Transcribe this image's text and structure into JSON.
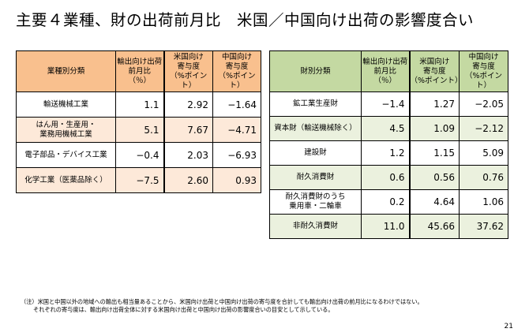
{
  "title": "主要４業種、財の出荷前月比　米国／中国向け出荷の影響度合い",
  "left_table": {
    "headers": [
      "業種別分類",
      "輸出向け出荷\n前月比\n（％）",
      "米国向け\n寄与度\n（%ポイント）",
      "中国向け\n寄与度\n（%ポイント）"
    ],
    "rows": [
      {
        "label": "輸送機械工業",
        "v1": "1.1",
        "v2": "2.92",
        "v3": "−1.64"
      },
      {
        "label": "はん用・生産用・\n業務用機械工業",
        "v1": "5.1",
        "v2": "7.67",
        "v3": "−4.71"
      },
      {
        "label": "電子部品・デバイス工業",
        "v1": "−0.4",
        "v2": "2.03",
        "v3": "−6.93"
      },
      {
        "label": "化学工業（医薬品除く）",
        "v1": "−7.5",
        "v2": "2.60",
        "v3": "0.93"
      }
    ]
  },
  "right_table": {
    "headers": [
      "財別分類",
      "輸出向け出荷\n前月比\n（％）",
      "米国向け\n寄与度\n（%ポイント）",
      "中国向け\n寄与度\n（%ポイント）"
    ],
    "rows": [
      {
        "label": "鉱工業生産財",
        "v1": "−1.4",
        "v2": "1.27",
        "v3": "−2.05"
      },
      {
        "label": "資本財（輸送機械除く）",
        "v1": "4.5",
        "v2": "1.09",
        "v3": "−2.12"
      },
      {
        "label": "建設財",
        "v1": "1.2",
        "v2": "1.15",
        "v3": "5.09"
      },
      {
        "label": "耐久消費財",
        "v1": "0.6",
        "v2": "0.56",
        "v3": "0.76"
      },
      {
        "label": "耐久消費財のうち\n乗用車・二輪車",
        "v1": "0.2",
        "v2": "4.64",
        "v3": "1.06"
      },
      {
        "label": "非耐久消費財",
        "v1": "11.0",
        "v2": "45.66",
        "v3": "37.62"
      }
    ]
  },
  "note": {
    "line1": "（注）米国と中国以外の地域への輸出も相当量あることから、米国向け出荷と中国向け出荷の寄与度を合計しても輸出向け出荷の前月比になるわけではない。",
    "line2": "それぞれの寄与度は、輸出向け出荷全体に対する米国向け出荷と中国向け出荷の影響度合いの目安として示している。"
  },
  "page_number": "21",
  "colors": {
    "left_header": "#f9c08e",
    "left_band": "#fde9d9",
    "right_header": "#c4d9a2",
    "right_band": "#ebf1de"
  }
}
